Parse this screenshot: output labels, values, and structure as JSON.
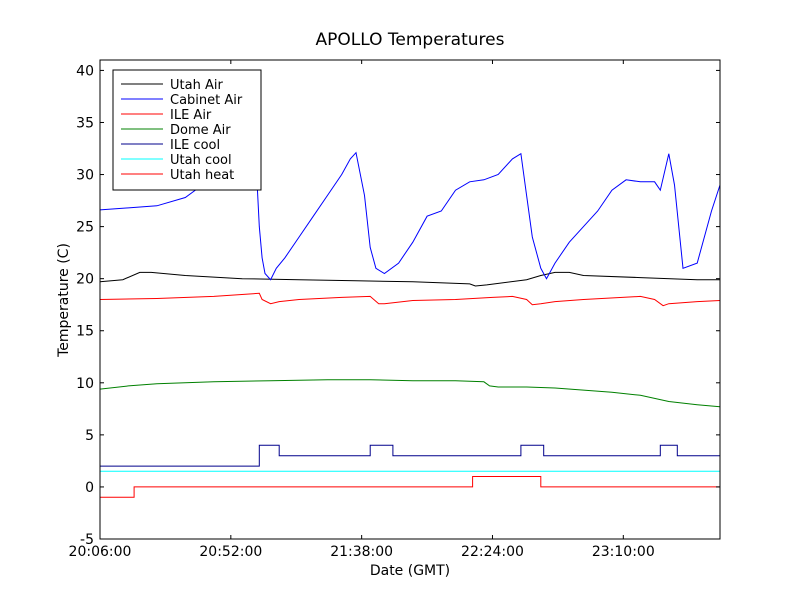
{
  "chart_data": {
    "type": "line",
    "title": "APOLLO Temperatures",
    "xlabel": "Date (GMT)",
    "ylabel": "Temperature (C)",
    "x_unit": "minutes since 20:06:00",
    "xlim": [
      0,
      218
    ],
    "ylim": [
      -5,
      41
    ],
    "xticks": [
      {
        "value": 0,
        "label": "20:06:00"
      },
      {
        "value": 46,
        "label": "20:52:00"
      },
      {
        "value": 92,
        "label": "21:38:00"
      },
      {
        "value": 138,
        "label": "22:24:00"
      },
      {
        "value": 184,
        "label": "23:10:00"
      }
    ],
    "yticks": [
      {
        "value": -5,
        "label": "-5"
      },
      {
        "value": 0,
        "label": "0"
      },
      {
        "value": 5,
        "label": "5"
      },
      {
        "value": 10,
        "label": "10"
      },
      {
        "value": 15,
        "label": "15"
      },
      {
        "value": 20,
        "label": "20"
      },
      {
        "value": 25,
        "label": "25"
      },
      {
        "value": 30,
        "label": "30"
      },
      {
        "value": 35,
        "label": "35"
      },
      {
        "value": 40,
        "label": "40"
      }
    ],
    "grid": false,
    "legend_position": "top-left",
    "series": [
      {
        "name": "Utah Air",
        "color": "#000000",
        "step": false,
        "x": [
          0,
          8,
          14,
          18,
          30,
          50,
          70,
          90,
          110,
          130,
          132,
          136,
          150,
          155,
          160,
          165,
          170,
          190,
          210,
          218
        ],
        "y": [
          19.7,
          19.9,
          20.6,
          20.6,
          20.3,
          20.0,
          19.9,
          19.8,
          19.7,
          19.5,
          19.3,
          19.4,
          19.9,
          20.3,
          20.6,
          20.6,
          20.3,
          20.1,
          19.9,
          19.9
        ]
      },
      {
        "name": "Cabinet Air",
        "color": "#0000ff",
        "step": false,
        "x": [
          0,
          10,
          20,
          30,
          36,
          40,
          45,
          50,
          55,
          56,
          57,
          58,
          60,
          62,
          65,
          70,
          75,
          80,
          85,
          88,
          90,
          93,
          95,
          97,
          100,
          105,
          110,
          115,
          120,
          125,
          130,
          135,
          140,
          145,
          148,
          150,
          152,
          155,
          157,
          160,
          165,
          170,
          175,
          180,
          185,
          190,
          195,
          197,
          200,
          202,
          205,
          210,
          215,
          218
        ],
        "y": [
          26.6,
          26.8,
          27.0,
          27.8,
          29.0,
          30.0,
          31.0,
          31.2,
          30.5,
          25.0,
          22.0,
          20.5,
          19.9,
          21.0,
          22.0,
          24.0,
          26.0,
          28.0,
          30.0,
          31.5,
          32.1,
          28.0,
          23.0,
          21.0,
          20.5,
          21.5,
          23.5,
          26.0,
          26.5,
          28.5,
          29.3,
          29.5,
          30.0,
          31.5,
          32.0,
          28.0,
          24.0,
          21.0,
          20.0,
          21.5,
          23.5,
          25.0,
          26.5,
          28.5,
          29.5,
          29.3,
          29.3,
          28.5,
          32.0,
          29.0,
          21.0,
          21.5,
          26.5,
          29.0
        ]
      },
      {
        "name": "ILE Air",
        "color": "#ff0000",
        "step": false,
        "x": [
          0,
          20,
          40,
          56,
          57,
          60,
          63,
          70,
          85,
          95,
          98,
          100,
          110,
          125,
          138,
          145,
          150,
          152,
          155,
          160,
          170,
          190,
          195,
          198,
          200,
          210,
          218
        ],
        "y": [
          18.0,
          18.1,
          18.3,
          18.6,
          18.0,
          17.6,
          17.8,
          18.0,
          18.2,
          18.3,
          17.6,
          17.6,
          17.9,
          18.0,
          18.2,
          18.3,
          18.0,
          17.5,
          17.6,
          17.8,
          18.0,
          18.3,
          18.0,
          17.4,
          17.6,
          17.8,
          17.9
        ]
      },
      {
        "name": "Dome Air",
        "color": "#008000",
        "step": false,
        "x": [
          0,
          10,
          20,
          30,
          40,
          60,
          80,
          95,
          110,
          125,
          135,
          137,
          140,
          150,
          160,
          170,
          180,
          190,
          200,
          210,
          218
        ],
        "y": [
          9.4,
          9.7,
          9.9,
          10.0,
          10.1,
          10.2,
          10.3,
          10.3,
          10.2,
          10.2,
          10.1,
          9.7,
          9.6,
          9.6,
          9.5,
          9.3,
          9.1,
          8.8,
          8.2,
          7.9,
          7.7
        ]
      },
      {
        "name": "ILE cool",
        "color": "#00008b",
        "step": true,
        "x": [
          0,
          56,
          63,
          95,
          103,
          148,
          156,
          197,
          203,
          218
        ],
        "y": [
          2.0,
          4.0,
          3.0,
          4.0,
          3.0,
          4.0,
          3.0,
          4.0,
          3.0,
          3.0
        ]
      },
      {
        "name": "Utah cool",
        "color": "#00ffff",
        "step": false,
        "x": [
          0,
          218
        ],
        "y": [
          1.5,
          1.5
        ]
      },
      {
        "name": "Utah heat",
        "color": "#ff0000",
        "step": true,
        "x": [
          0,
          12,
          131,
          155,
          218
        ],
        "y": [
          -1.0,
          0.0,
          1.0,
          0.0,
          0.0
        ]
      }
    ]
  }
}
